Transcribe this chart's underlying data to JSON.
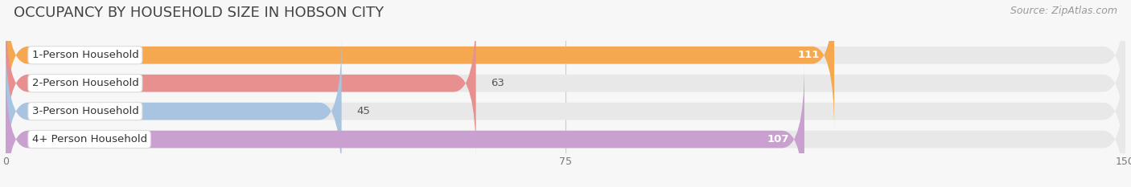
{
  "title": "OCCUPANCY BY HOUSEHOLD SIZE IN HOBSON CITY",
  "source": "Source: ZipAtlas.com",
  "categories": [
    "1-Person Household",
    "2-Person Household",
    "3-Person Household",
    "4+ Person Household"
  ],
  "values": [
    111,
    63,
    45,
    107
  ],
  "bar_colors": [
    "#f5a850",
    "#e89090",
    "#a8c4e0",
    "#c9a0d0"
  ],
  "value_inside": [
    true,
    false,
    false,
    true
  ],
  "value_colors_inside": [
    "#ffffff",
    "#555555",
    "#555555",
    "#ffffff"
  ],
  "xlim": [
    0,
    150
  ],
  "xticks": [
    0,
    75,
    150
  ],
  "background_color": "#f7f7f7",
  "bar_background_color": "#e8e8e8",
  "title_fontsize": 13,
  "source_fontsize": 9,
  "label_fontsize": 9.5,
  "value_fontsize": 9.5,
  "bar_height": 0.62,
  "figsize": [
    14.06,
    2.33
  ],
  "dpi": 100
}
